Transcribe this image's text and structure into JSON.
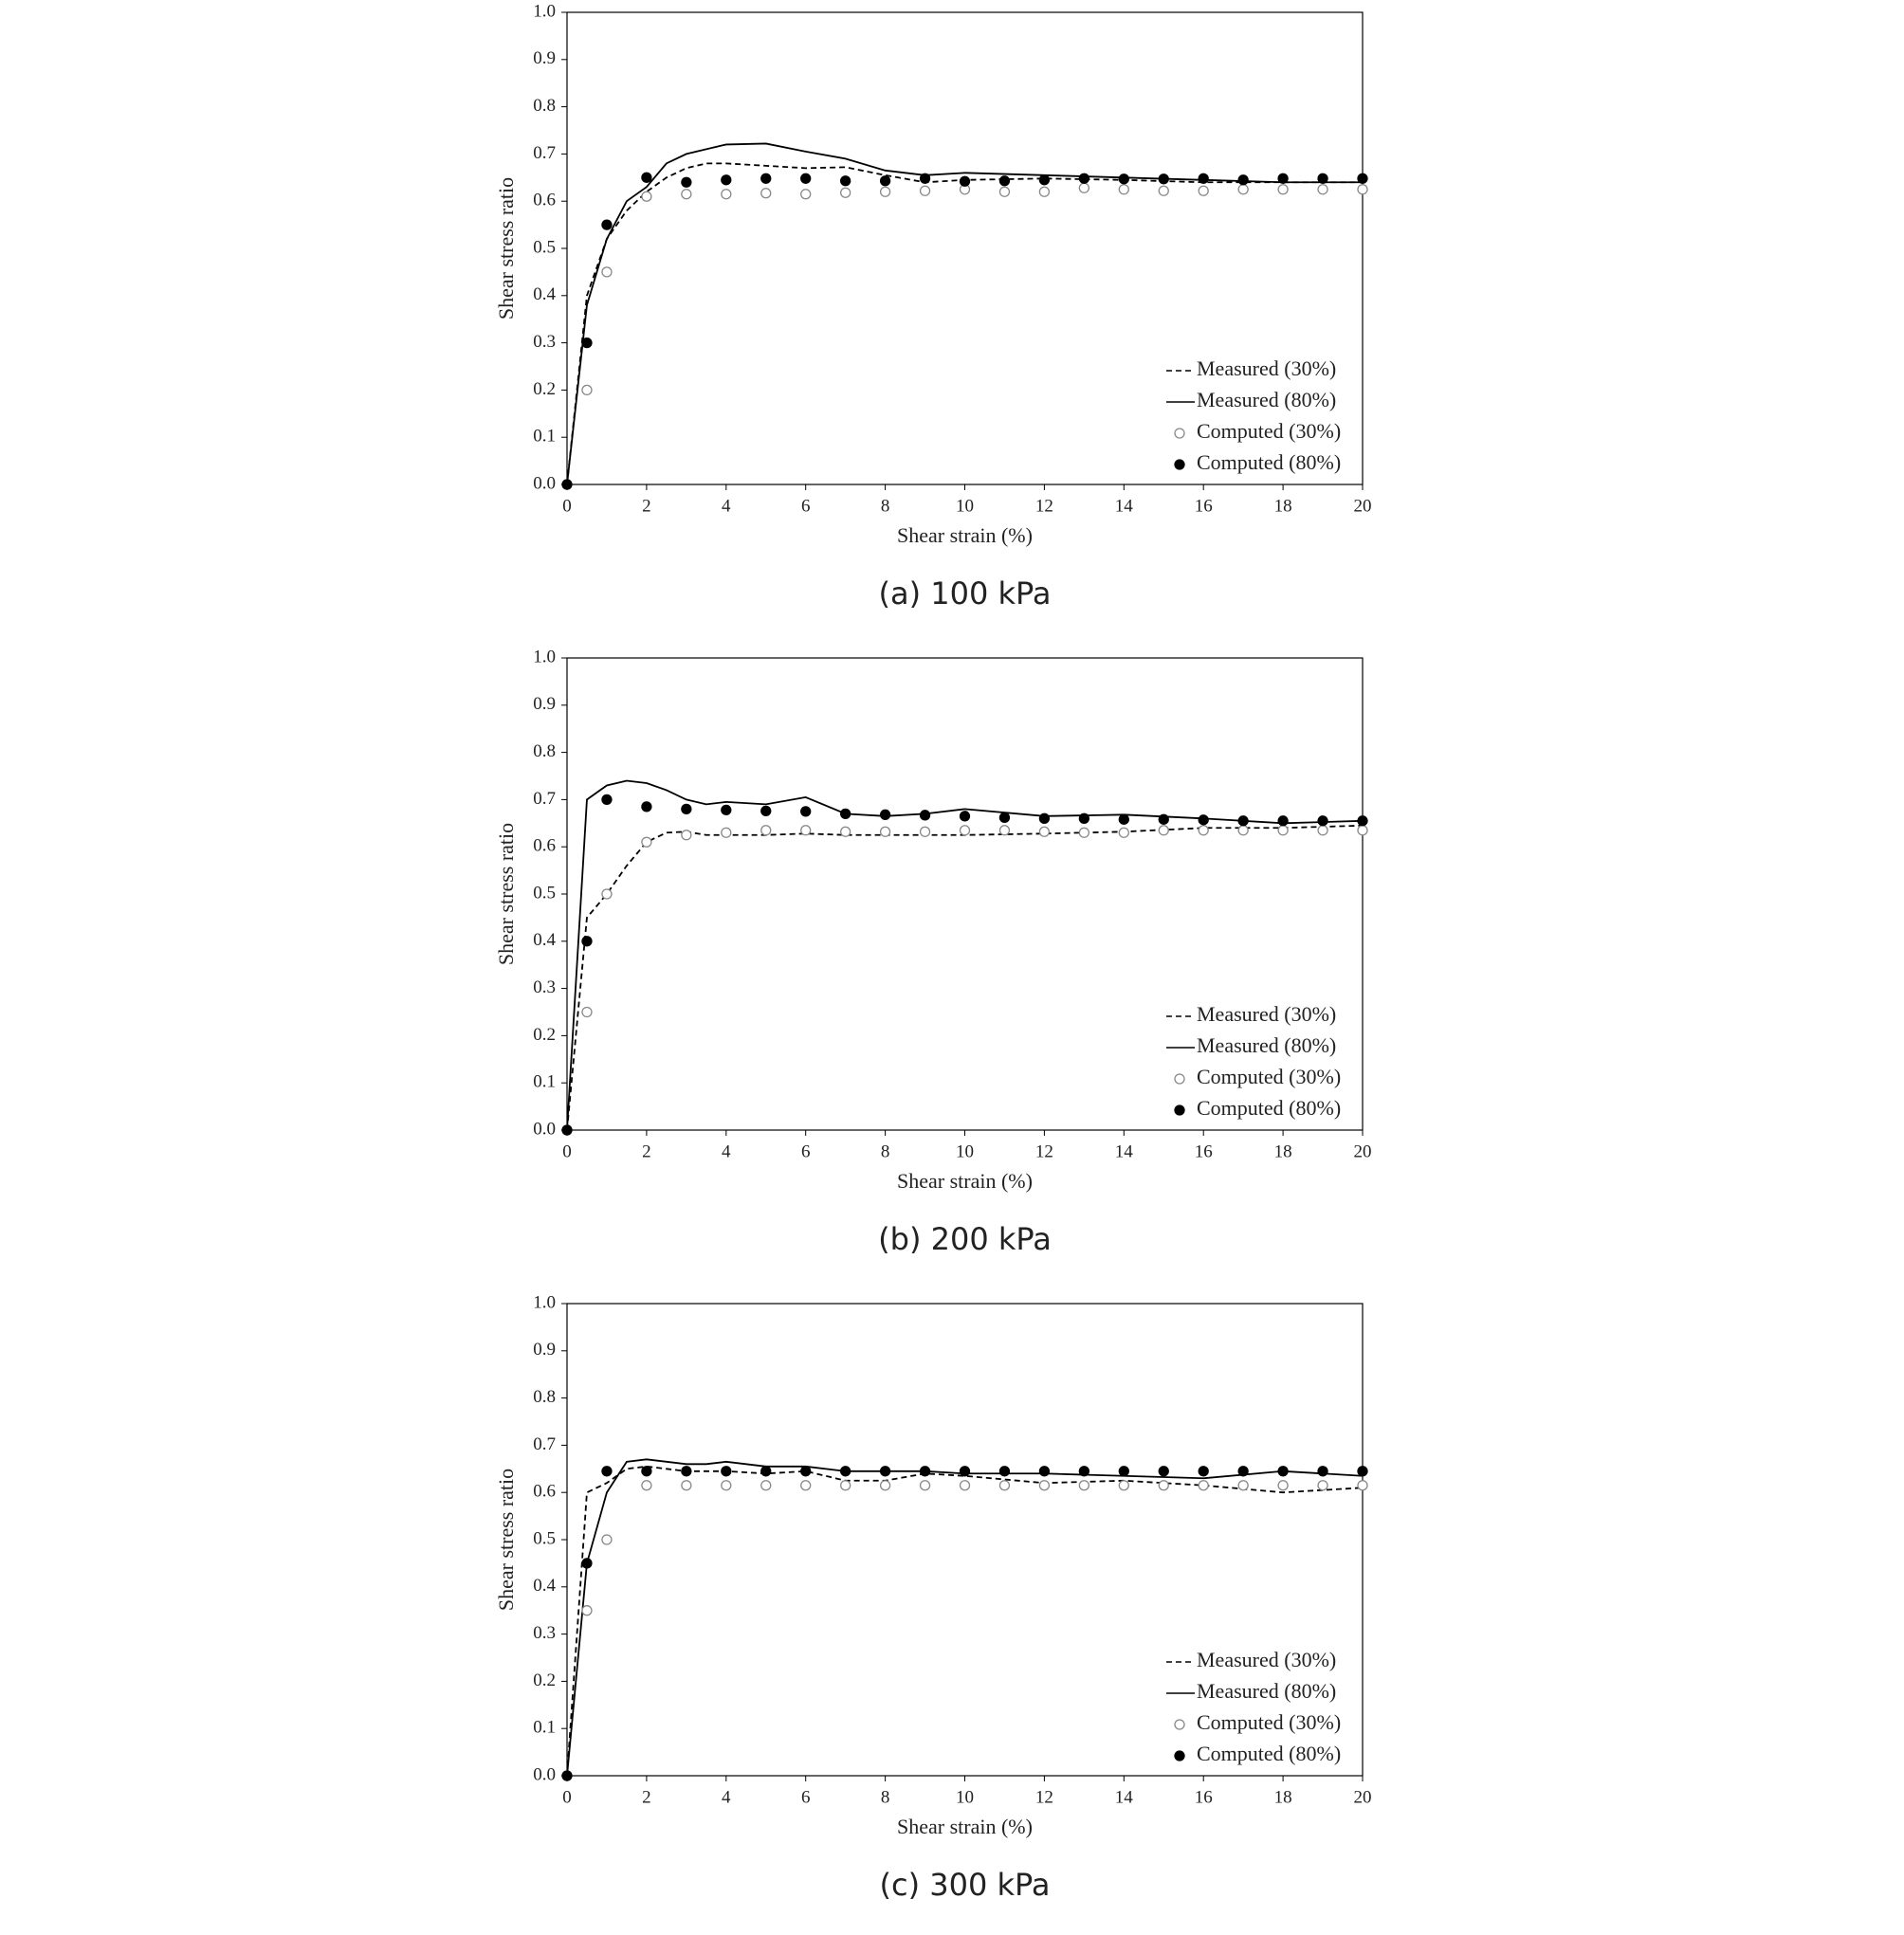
{
  "chart_data": [
    {
      "type": "line",
      "caption": "(a) 100 kPa",
      "xlabel": "Shear strain (%)",
      "ylabel": "Shear stress ratio",
      "xlim": [
        0,
        20
      ],
      "ylim": [
        0,
        1
      ],
      "xticks": [
        0,
        2,
        4,
        6,
        8,
        10,
        12,
        14,
        16,
        18,
        20
      ],
      "yticks": [
        {
          "value": 0,
          "label": "0.0"
        },
        0.1,
        0.2,
        0.3,
        0.4,
        0.5,
        0.6,
        0.7,
        0.8,
        0.9,
        {
          "value": 1,
          "label": "1.0"
        }
      ],
      "legend": "lower right",
      "series": [
        {
          "name": "Measured (30%)",
          "kind": "line",
          "dash": true,
          "color": "#000000",
          "x": [
            0,
            0.5,
            1,
            1.5,
            2,
            2.5,
            3,
            3.5,
            4,
            5,
            6,
            7,
            8,
            9,
            10,
            12,
            14,
            16,
            18,
            20
          ],
          "values": [
            0,
            0.4,
            0.52,
            0.58,
            0.62,
            0.65,
            0.67,
            0.68,
            0.68,
            0.675,
            0.67,
            0.672,
            0.655,
            0.64,
            0.645,
            0.648,
            0.645,
            0.64,
            0.64,
            0.64
          ]
        },
        {
          "name": "Measured (80%)",
          "kind": "line",
          "dash": false,
          "color": "#000000",
          "x": [
            0,
            0.5,
            1,
            1.5,
            2,
            2.5,
            3,
            3.5,
            4,
            5,
            6,
            7,
            8,
            9,
            10,
            12,
            14,
            16,
            18,
            20
          ],
          "values": [
            0,
            0.38,
            0.52,
            0.6,
            0.63,
            0.68,
            0.7,
            0.71,
            0.72,
            0.722,
            0.705,
            0.69,
            0.665,
            0.655,
            0.66,
            0.655,
            0.65,
            0.645,
            0.64,
            0.64
          ]
        },
        {
          "name": "Computed (30%)",
          "kind": "scatter",
          "filled": false,
          "color": "#888888",
          "x": [
            0,
            0.5,
            1,
            2,
            3,
            4,
            5,
            6,
            7,
            8,
            9,
            10,
            11,
            12,
            13,
            14,
            15,
            16,
            17,
            18,
            19,
            20
          ],
          "values": [
            0,
            0.2,
            0.45,
            0.61,
            0.615,
            0.615,
            0.617,
            0.615,
            0.618,
            0.62,
            0.622,
            0.625,
            0.62,
            0.62,
            0.628,
            0.625,
            0.622,
            0.622,
            0.625,
            0.625,
            0.625,
            0.625
          ]
        },
        {
          "name": "Computed (80%)",
          "kind": "scatter",
          "filled": true,
          "color": "#000000",
          "x": [
            0,
            0.5,
            1,
            2,
            3,
            4,
            5,
            6,
            7,
            8,
            9,
            10,
            11,
            12,
            13,
            14,
            15,
            16,
            17,
            18,
            19,
            20
          ],
          "values": [
            0,
            0.3,
            0.55,
            0.65,
            0.64,
            0.645,
            0.648,
            0.648,
            0.643,
            0.643,
            0.648,
            0.642,
            0.643,
            0.645,
            0.648,
            0.647,
            0.647,
            0.648,
            0.645,
            0.648,
            0.648,
            0.648
          ]
        }
      ]
    },
    {
      "type": "line",
      "caption": "(b) 200 kPa",
      "xlabel": "Shear strain (%)",
      "ylabel": "Shear stress ratio",
      "xlim": [
        0,
        20
      ],
      "ylim": [
        0,
        1
      ],
      "xticks": [
        0,
        2,
        4,
        6,
        8,
        10,
        12,
        14,
        16,
        18,
        20
      ],
      "yticks": [
        {
          "value": 0,
          "label": "0.0"
        },
        0.1,
        0.2,
        0.3,
        0.4,
        0.5,
        0.6,
        0.7,
        0.8,
        0.9,
        {
          "value": 1,
          "label": "1.0"
        }
      ],
      "legend": "lower right",
      "series": [
        {
          "name": "Measured (30%)",
          "kind": "line",
          "dash": true,
          "color": "#000000",
          "x": [
            0,
            0.5,
            1,
            1.5,
            2,
            2.5,
            3,
            3.5,
            4,
            5,
            6,
            7,
            8,
            9,
            10,
            12,
            14,
            16,
            18,
            20
          ],
          "values": [
            0,
            0.45,
            0.5,
            0.56,
            0.61,
            0.63,
            0.632,
            0.625,
            0.625,
            0.625,
            0.628,
            0.625,
            0.625,
            0.625,
            0.625,
            0.628,
            0.632,
            0.64,
            0.64,
            0.645
          ]
        },
        {
          "name": "Measured (80%)",
          "kind": "line",
          "dash": false,
          "color": "#000000",
          "x": [
            0,
            0.5,
            1,
            1.5,
            2,
            2.5,
            3,
            3.5,
            4,
            5,
            6,
            7,
            8,
            9,
            10,
            12,
            14,
            16,
            18,
            20
          ],
          "values": [
            0,
            0.7,
            0.73,
            0.74,
            0.735,
            0.72,
            0.7,
            0.69,
            0.695,
            0.69,
            0.705,
            0.67,
            0.665,
            0.67,
            0.68,
            0.665,
            0.668,
            0.66,
            0.65,
            0.655
          ]
        },
        {
          "name": "Computed (30%)",
          "kind": "scatter",
          "filled": false,
          "color": "#888888",
          "x": [
            0,
            0.5,
            1,
            2,
            3,
            4,
            5,
            6,
            7,
            8,
            9,
            10,
            11,
            12,
            13,
            14,
            15,
            16,
            17,
            18,
            19,
            20
          ],
          "values": [
            0,
            0.25,
            0.5,
            0.61,
            0.625,
            0.63,
            0.635,
            0.635,
            0.632,
            0.632,
            0.632,
            0.635,
            0.635,
            0.632,
            0.63,
            0.63,
            0.635,
            0.635,
            0.635,
            0.635,
            0.635,
            0.635
          ]
        },
        {
          "name": "Computed (80%)",
          "kind": "scatter",
          "filled": true,
          "color": "#000000",
          "x": [
            0,
            0.5,
            1,
            2,
            3,
            4,
            5,
            6,
            7,
            8,
            9,
            10,
            11,
            12,
            13,
            14,
            15,
            16,
            17,
            18,
            19,
            20
          ],
          "values": [
            0,
            0.4,
            0.7,
            0.685,
            0.68,
            0.678,
            0.676,
            0.675,
            0.67,
            0.668,
            0.667,
            0.665,
            0.662,
            0.66,
            0.66,
            0.658,
            0.658,
            0.657,
            0.655,
            0.655,
            0.655,
            0.655
          ]
        }
      ]
    },
    {
      "type": "line",
      "caption": "(c) 300 kPa",
      "xlabel": "Shear strain (%)",
      "ylabel": "Shear stress ratio",
      "xlim": [
        0,
        20
      ],
      "ylim": [
        0,
        1
      ],
      "xticks": [
        0,
        2,
        4,
        6,
        8,
        10,
        12,
        14,
        16,
        18,
        20
      ],
      "yticks": [
        {
          "value": 0,
          "label": "0.0"
        },
        0.1,
        0.2,
        0.3,
        0.4,
        0.5,
        0.6,
        0.7,
        0.8,
        0.9,
        {
          "value": 1,
          "label": "1.0"
        }
      ],
      "legend": "lower right",
      "series": [
        {
          "name": "Measured (30%)",
          "kind": "line",
          "dash": true,
          "color": "#000000",
          "x": [
            0,
            0.5,
            1,
            1.5,
            2,
            2.5,
            3,
            3.5,
            4,
            5,
            6,
            7,
            8,
            9,
            10,
            12,
            14,
            16,
            18,
            20
          ],
          "values": [
            0,
            0.6,
            0.62,
            0.65,
            0.655,
            0.65,
            0.645,
            0.645,
            0.645,
            0.64,
            0.645,
            0.625,
            0.625,
            0.64,
            0.635,
            0.62,
            0.625,
            0.615,
            0.6,
            0.61
          ]
        },
        {
          "name": "Measured (80%)",
          "kind": "line",
          "dash": false,
          "color": "#000000",
          "x": [
            0,
            0.5,
            1,
            1.5,
            2,
            2.5,
            3,
            3.5,
            4,
            5,
            6,
            7,
            8,
            9,
            10,
            12,
            14,
            16,
            18,
            20
          ],
          "values": [
            0,
            0.45,
            0.6,
            0.665,
            0.67,
            0.665,
            0.66,
            0.66,
            0.665,
            0.655,
            0.655,
            0.645,
            0.645,
            0.645,
            0.64,
            0.64,
            0.635,
            0.63,
            0.645,
            0.635
          ]
        },
        {
          "name": "Computed (30%)",
          "kind": "scatter",
          "filled": false,
          "color": "#888888",
          "x": [
            0,
            0.5,
            1,
            2,
            3,
            4,
            5,
            6,
            7,
            8,
            9,
            10,
            11,
            12,
            13,
            14,
            15,
            16,
            17,
            18,
            19,
            20
          ],
          "values": [
            0,
            0.35,
            0.5,
            0.615,
            0.615,
            0.615,
            0.615,
            0.615,
            0.615,
            0.615,
            0.615,
            0.615,
            0.615,
            0.615,
            0.615,
            0.615,
            0.615,
            0.615,
            0.615,
            0.615,
            0.615,
            0.615
          ]
        },
        {
          "name": "Computed (80%)",
          "kind": "scatter",
          "filled": true,
          "color": "#000000",
          "x": [
            0,
            0.5,
            1,
            2,
            3,
            4,
            5,
            6,
            7,
            8,
            9,
            10,
            11,
            12,
            13,
            14,
            15,
            16,
            17,
            18,
            19,
            20
          ],
          "values": [
            0,
            0.45,
            0.645,
            0.645,
            0.645,
            0.645,
            0.645,
            0.645,
            0.645,
            0.645,
            0.645,
            0.645,
            0.645,
            0.645,
            0.645,
            0.645,
            0.645,
            0.645,
            0.645,
            0.645,
            0.645,
            0.645
          ]
        }
      ]
    }
  ]
}
